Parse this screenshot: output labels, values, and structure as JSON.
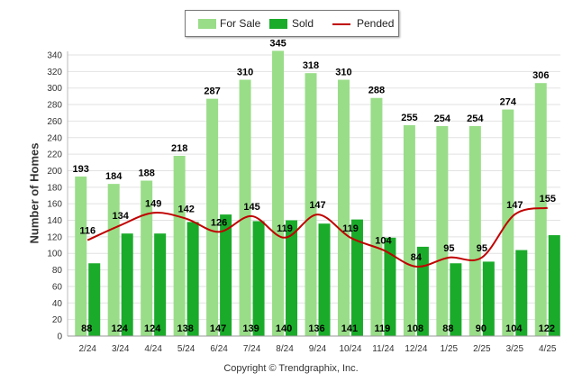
{
  "chart_data": {
    "type": "bar",
    "categories": [
      "2/24",
      "3/24",
      "4/24",
      "5/24",
      "6/24",
      "7/24",
      "8/24",
      "9/24",
      "10/24",
      "11/24",
      "12/24",
      "1/25",
      "2/25",
      "3/25",
      "4/25"
    ],
    "series": [
      {
        "name": "For Sale",
        "kind": "bar",
        "color": "#99dd88",
        "values": [
          193,
          184,
          188,
          218,
          287,
          310,
          345,
          318,
          310,
          288,
          255,
          254,
          254,
          274,
          306
        ]
      },
      {
        "name": "Sold",
        "kind": "bar",
        "color": "#1aab2a",
        "values": [
          88,
          124,
          124,
          138,
          147,
          139,
          140,
          136,
          141,
          119,
          108,
          88,
          90,
          104,
          122
        ]
      },
      {
        "name": "Pended",
        "kind": "line",
        "color": "#c00000",
        "values": [
          116,
          134,
          149,
          142,
          126,
          145,
          119,
          147,
          119,
          104,
          84,
          95,
          95,
          147,
          155
        ]
      }
    ],
    "xlabel": "",
    "ylabel": "Number of Homes",
    "ylim": [
      0,
      340
    ],
    "ytick_step": 20,
    "grid": true,
    "legend_position": "top-center"
  },
  "footer": {
    "copyright": "Copyright © Trendgraphix, Inc."
  }
}
